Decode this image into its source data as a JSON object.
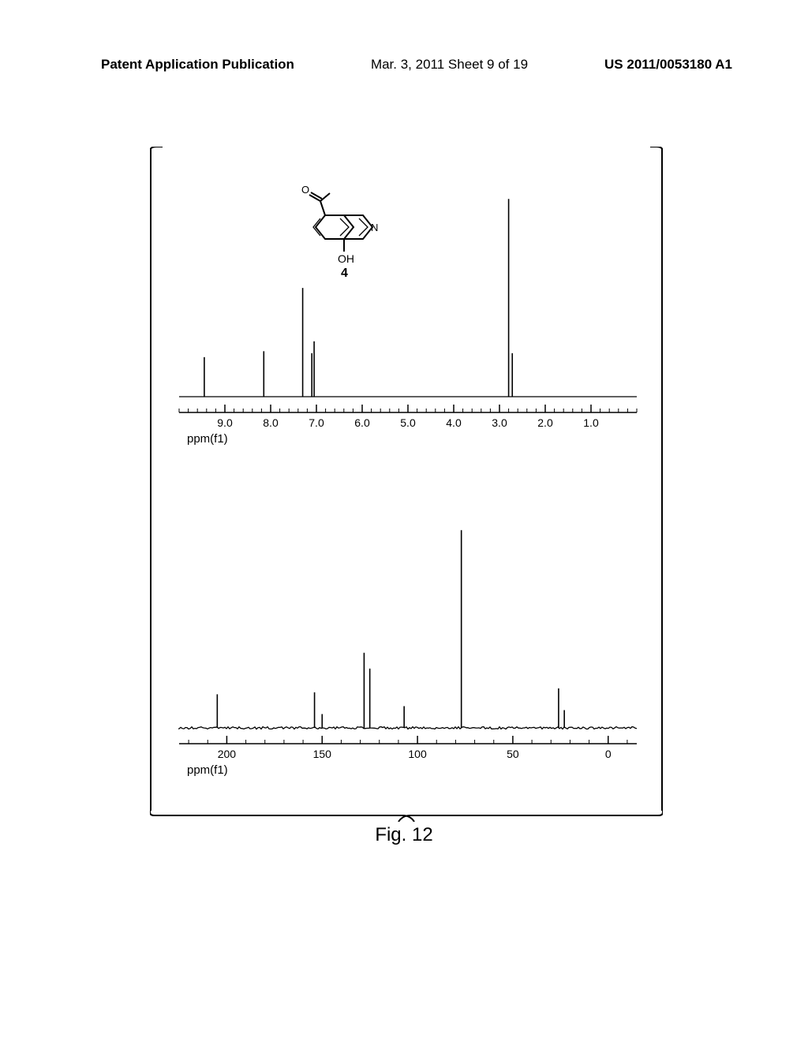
{
  "header": {
    "left": "Patent Application Publication",
    "center": "Mar. 3, 2011  Sheet 9 of 19",
    "right": "US 2011/0053180 A1"
  },
  "figure_caption": "Fig. 12",
  "molecule": {
    "compound_number": "4",
    "oh_label": "OH",
    "o_label": "O",
    "n_label": "N"
  },
  "spectrum_1h": {
    "type": "nmr-spectrum",
    "axis_label": "ppm(f1)",
    "xlim": [
      10.0,
      0.0
    ],
    "ticks": [
      {
        "val": 9.0,
        "label": "9.0"
      },
      {
        "val": 8.0,
        "label": "8.0"
      },
      {
        "val": 7.0,
        "label": "7.0"
      },
      {
        "val": 6.0,
        "label": "6.0"
      },
      {
        "val": 5.0,
        "label": "5.0"
      },
      {
        "val": 4.0,
        "label": "4.0"
      },
      {
        "val": 3.0,
        "label": "3.0"
      },
      {
        "val": 2.0,
        "label": "2.0"
      },
      {
        "val": 1.0,
        "label": "1.0"
      }
    ],
    "tick_fontsize": 14,
    "label_fontsize": 15,
    "baseline_height": 0.98,
    "peaks": [
      {
        "ppm": 9.45,
        "h": 0.2
      },
      {
        "ppm": 8.15,
        "h": 0.23
      },
      {
        "ppm": 7.3,
        "h": 0.55
      },
      {
        "ppm": 7.1,
        "h": 0.22
      },
      {
        "ppm": 7.05,
        "h": 0.28
      },
      {
        "ppm": 2.8,
        "h": 1.0
      },
      {
        "ppm": 2.72,
        "h": 0.22
      }
    ],
    "line_color": "#000000",
    "axis_color": "#000000",
    "background_color": "#ffffff"
  },
  "spectrum_13c": {
    "type": "nmr-spectrum",
    "axis_label": "ppm(f1)",
    "xlim": [
      225,
      -15
    ],
    "ticks": [
      {
        "val": 200,
        "label": "200"
      },
      {
        "val": 150,
        "label": "150"
      },
      {
        "val": 100,
        "label": "100"
      },
      {
        "val": 50,
        "label": "50"
      },
      {
        "val": 0,
        "label": "0"
      }
    ],
    "tick_fontsize": 14,
    "label_fontsize": 15,
    "baseline_height": 0.98,
    "noise_level": 0.025,
    "peaks": [
      {
        "ppm": 205,
        "h": 0.17
      },
      {
        "ppm": 154,
        "h": 0.18
      },
      {
        "ppm": 150,
        "h": 0.07
      },
      {
        "ppm": 128,
        "h": 0.38
      },
      {
        "ppm": 125,
        "h": 0.3
      },
      {
        "ppm": 107,
        "h": 0.11
      },
      {
        "ppm": 77,
        "h": 1.0
      },
      {
        "ppm": 26,
        "h": 0.2
      },
      {
        "ppm": 23,
        "h": 0.09
      }
    ],
    "line_color": "#000000",
    "axis_color": "#000000",
    "background_color": "#ffffff"
  }
}
